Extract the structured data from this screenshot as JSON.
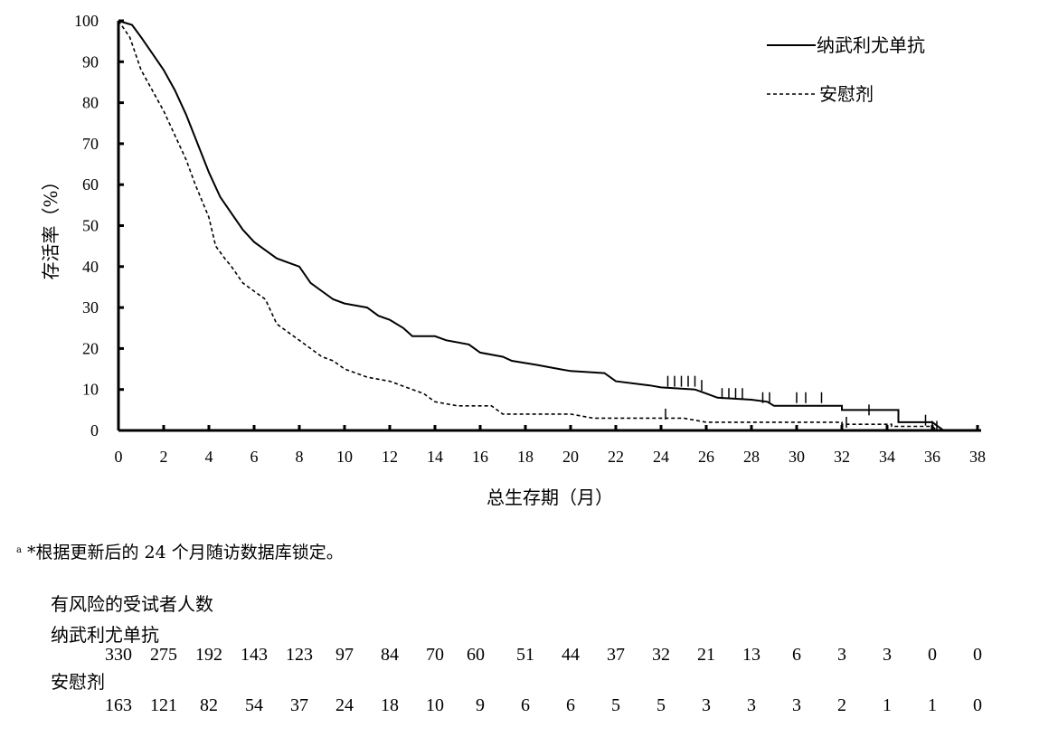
{
  "chart_data": {
    "type": "line",
    "title": "",
    "xlabel": "总生存期（月）",
    "ylabel": "存活率（%）",
    "xlim": [
      0,
      38
    ],
    "ylim": [
      0,
      100
    ],
    "xticks": [
      0,
      2,
      4,
      6,
      8,
      10,
      12,
      14,
      16,
      18,
      20,
      22,
      24,
      26,
      28,
      30,
      32,
      34,
      36,
      38
    ],
    "yticks": [
      0,
      10,
      20,
      30,
      40,
      50,
      60,
      70,
      80,
      90,
      100
    ],
    "grid": false,
    "legend_position": "top-right",
    "series": [
      {
        "name": "纳武利尤单抗",
        "style": "solid",
        "color": "#000000",
        "points": [
          [
            0,
            100
          ],
          [
            0.6,
            99
          ],
          [
            1,
            96
          ],
          [
            1.5,
            92
          ],
          [
            2,
            88
          ],
          [
            2.5,
            83
          ],
          [
            3,
            77
          ],
          [
            3.5,
            70
          ],
          [
            4,
            63
          ],
          [
            4.5,
            57
          ],
          [
            5,
            53
          ],
          [
            5.5,
            49
          ],
          [
            6,
            46
          ],
          [
            6.5,
            44
          ],
          [
            7,
            42
          ],
          [
            7.5,
            41
          ],
          [
            8,
            40
          ],
          [
            8.5,
            36
          ],
          [
            9,
            34
          ],
          [
            9.5,
            32
          ],
          [
            10,
            31
          ],
          [
            11,
            30
          ],
          [
            11.5,
            28
          ],
          [
            12,
            27
          ],
          [
            12.6,
            25
          ],
          [
            13,
            23
          ],
          [
            14,
            23
          ],
          [
            14.5,
            22
          ],
          [
            15.5,
            21
          ],
          [
            16,
            19
          ],
          [
            17,
            18
          ],
          [
            17.4,
            17
          ],
          [
            18.5,
            16
          ],
          [
            19.5,
            15
          ],
          [
            20,
            14.5
          ],
          [
            21.5,
            14
          ],
          [
            22,
            12
          ],
          [
            23.5,
            11
          ],
          [
            24,
            10.5
          ],
          [
            25.5,
            10
          ],
          [
            26,
            9
          ],
          [
            26.5,
            8
          ],
          [
            28,
            7.5
          ],
          [
            28.7,
            7
          ],
          [
            29,
            6
          ],
          [
            32,
            6
          ],
          [
            32,
            5
          ],
          [
            34.5,
            5
          ],
          [
            34.5,
            2
          ],
          [
            36,
            2
          ],
          [
            36.5,
            0
          ]
        ],
        "censored": [
          [
            24.3,
            12
          ],
          [
            24.6,
            12
          ],
          [
            24.9,
            12
          ],
          [
            25.2,
            12
          ],
          [
            25.5,
            12
          ],
          [
            25.8,
            11
          ],
          [
            26.7,
            9
          ],
          [
            27,
            9
          ],
          [
            27.3,
            9
          ],
          [
            27.6,
            9
          ],
          [
            28.5,
            8
          ],
          [
            28.8,
            8
          ],
          [
            30,
            8
          ],
          [
            30.4,
            8
          ],
          [
            31.1,
            8
          ],
          [
            33.2,
            5
          ],
          [
            35.7,
            2.5
          ],
          [
            36.2,
            1
          ]
        ]
      },
      {
        "name": "安慰剂",
        "style": "dashed",
        "color": "#000000",
        "points": [
          [
            0,
            100
          ],
          [
            0.5,
            96
          ],
          [
            1,
            88
          ],
          [
            1.5,
            83
          ],
          [
            2,
            78
          ],
          [
            2.5,
            72
          ],
          [
            3,
            66
          ],
          [
            3.4,
            60
          ],
          [
            3.7,
            56
          ],
          [
            4,
            52
          ],
          [
            4.3,
            45
          ],
          [
            4.7,
            42
          ],
          [
            5,
            40
          ],
          [
            5.5,
            36
          ],
          [
            6,
            34
          ],
          [
            6.5,
            32
          ],
          [
            7,
            26
          ],
          [
            7.5,
            24
          ],
          [
            8,
            22
          ],
          [
            8.5,
            20
          ],
          [
            9,
            18
          ],
          [
            9.5,
            17
          ],
          [
            10,
            15
          ],
          [
            11,
            13
          ],
          [
            12,
            12
          ],
          [
            13,
            10
          ],
          [
            13.5,
            9
          ],
          [
            14,
            7
          ],
          [
            15,
            6
          ],
          [
            16.5,
            6
          ],
          [
            17,
            4
          ],
          [
            20,
            4
          ],
          [
            21,
            3
          ],
          [
            25,
            3
          ],
          [
            26,
            2
          ],
          [
            32,
            2
          ],
          [
            32,
            1.5
          ],
          [
            34.2,
            1.5
          ],
          [
            34.2,
            1
          ],
          [
            36,
            1
          ],
          [
            36.2,
            0
          ]
        ],
        "censored": [
          [
            24.2,
            4
          ],
          [
            32.2,
            2
          ],
          [
            36,
            1
          ]
        ]
      }
    ]
  },
  "footnote": {
    "mark": "a",
    "text": "*根据更新后的 24 个月随访数据库锁定。"
  },
  "risk_table": {
    "title": "有风险的受试者人数",
    "groups": [
      {
        "name": "纳武利尤单抗",
        "counts": [
          {
            "t": 0,
            "n": "330"
          },
          {
            "t": 2,
            "n": "275"
          },
          {
            "t": 4,
            "n": "192"
          },
          {
            "t": 6,
            "n": "143"
          },
          {
            "t": 8,
            "n": "123"
          },
          {
            "t": 10,
            "n": "97"
          },
          {
            "t": 12,
            "n": "84"
          },
          {
            "t": 14,
            "n": "70"
          },
          {
            "t": 15.8,
            "n": "60"
          },
          {
            "t": 18,
            "n": "51"
          },
          {
            "t": 20,
            "n": "44"
          },
          {
            "t": 22,
            "n": "37"
          },
          {
            "t": 24,
            "n": "32"
          },
          {
            "t": 26,
            "n": "21"
          },
          {
            "t": 28,
            "n": "13"
          },
          {
            "t": 30,
            "n": "6"
          },
          {
            "t": 32,
            "n": "3"
          },
          {
            "t": 34,
            "n": "3"
          },
          {
            "t": 36,
            "n": "0"
          },
          {
            "t": 38,
            "n": "0"
          }
        ]
      },
      {
        "name": "安慰剂",
        "counts": [
          {
            "t": 0,
            "n": "163"
          },
          {
            "t": 2,
            "n": "121"
          },
          {
            "t": 4,
            "n": "82"
          },
          {
            "t": 6,
            "n": "54"
          },
          {
            "t": 8,
            "n": "37"
          },
          {
            "t": 10,
            "n": "24"
          },
          {
            "t": 12,
            "n": "18"
          },
          {
            "t": 14,
            "n": "10"
          },
          {
            "t": 16,
            "n": "9"
          },
          {
            "t": 18,
            "n": "6"
          },
          {
            "t": 20,
            "n": "6"
          },
          {
            "t": 22,
            "n": "5"
          },
          {
            "t": 24,
            "n": "5"
          },
          {
            "t": 26,
            "n": "3"
          },
          {
            "t": 28,
            "n": "3"
          },
          {
            "t": 30,
            "n": "3"
          },
          {
            "t": 32,
            "n": "2"
          },
          {
            "t": 34,
            "n": "1"
          },
          {
            "t": 36,
            "n": "1"
          },
          {
            "t": 38,
            "n": "0"
          }
        ]
      }
    ]
  }
}
